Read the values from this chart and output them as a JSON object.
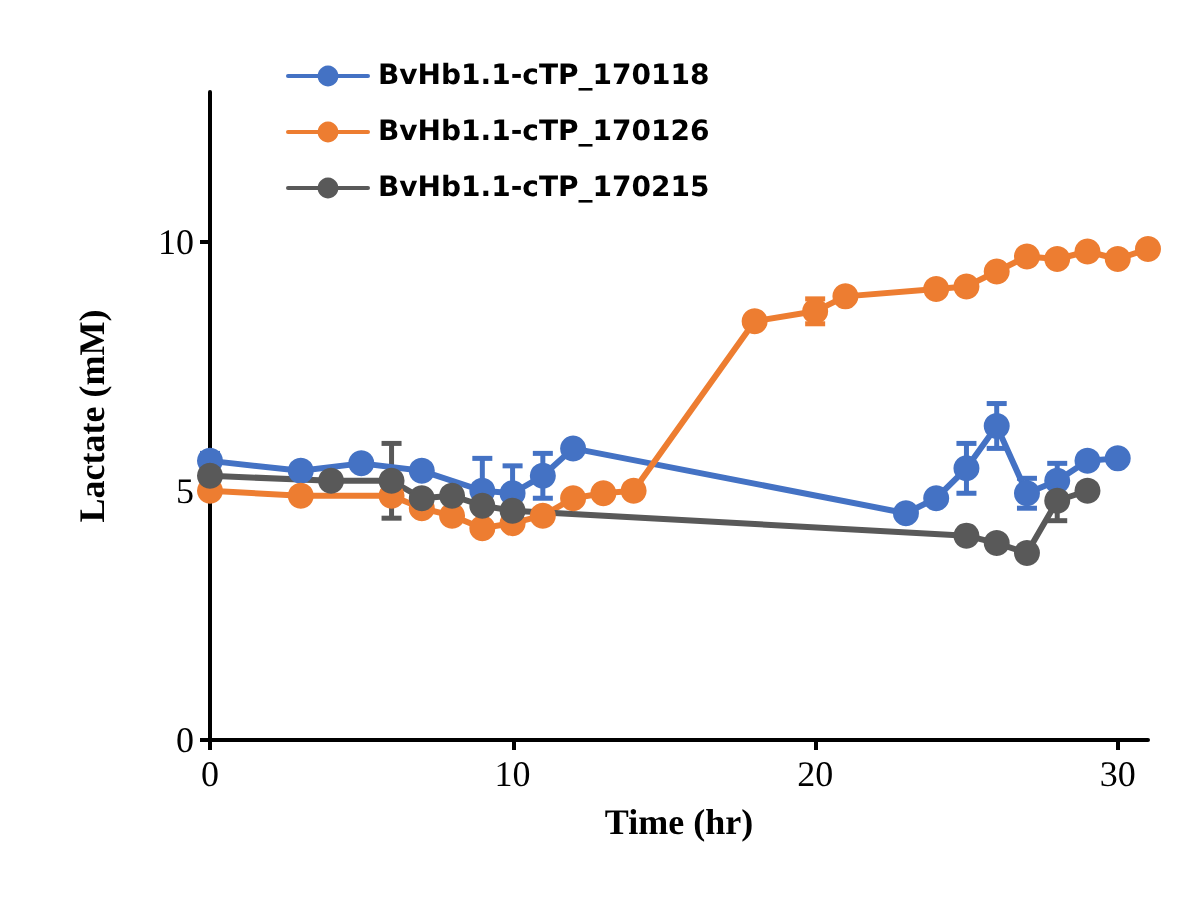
{
  "chart_data": {
    "type": "line",
    "xlabel": "Time (hr)",
    "ylabel": "Lactate (mM)",
    "xlim": [
      0,
      31
    ],
    "xticks": [
      0,
      10,
      20,
      30
    ],
    "ylim": [
      0,
      13
    ],
    "yticks": [
      0,
      5,
      10
    ],
    "grid": false,
    "legend": "top left",
    "marker": "circle",
    "line_style": "solid",
    "series": [
      {
        "name": "BvHb1.1-cTP_170118",
        "color": "#4472c4",
        "x": [
          0,
          3,
          5,
          7,
          9,
          10,
          11,
          12,
          23,
          24,
          25,
          26,
          27,
          28,
          29,
          30
        ],
        "values": [
          5.6,
          5.4,
          5.55,
          5.4,
          5.0,
          4.95,
          5.3,
          5.85,
          4.55,
          4.85,
          5.45,
          6.3,
          4.95,
          5.2,
          5.6,
          5.65
        ],
        "errors": [
          0.15,
          null,
          null,
          null,
          0.65,
          0.55,
          0.45,
          null,
          null,
          null,
          0.5,
          0.45,
          0.3,
          0.35,
          null,
          null
        ]
      },
      {
        "name": "BvHb1.1-cTP_170126",
        "color": "#ed7d31",
        "x": [
          0,
          3,
          6,
          7,
          8,
          9,
          10,
          11,
          12,
          13,
          14,
          18,
          20,
          21,
          24,
          25,
          26,
          27,
          28,
          29,
          30,
          31
        ],
        "values": [
          5.0,
          4.9,
          4.9,
          4.65,
          4.5,
          4.25,
          4.35,
          4.5,
          4.85,
          4.95,
          5.0,
          8.4,
          8.6,
          8.9,
          9.05,
          9.1,
          9.4,
          9.7,
          9.65,
          9.8,
          9.65,
          9.85
        ],
        "errors": [
          null,
          null,
          null,
          null,
          null,
          null,
          null,
          null,
          null,
          null,
          null,
          null,
          0.25,
          null,
          null,
          null,
          null,
          null,
          null,
          null,
          null,
          null
        ]
      },
      {
        "name": "BvHb1.1-cTP_170215",
        "color": "#595959",
        "x": [
          0,
          4,
          6,
          7,
          8,
          9,
          10,
          25,
          26,
          27,
          28,
          29
        ],
        "values": [
          5.3,
          5.2,
          5.2,
          4.85,
          4.9,
          4.7,
          4.6,
          4.1,
          3.95,
          3.75,
          4.8,
          5.0
        ],
        "errors": [
          null,
          null,
          0.75,
          null,
          null,
          null,
          null,
          null,
          null,
          null,
          0.4,
          null
        ]
      }
    ]
  }
}
